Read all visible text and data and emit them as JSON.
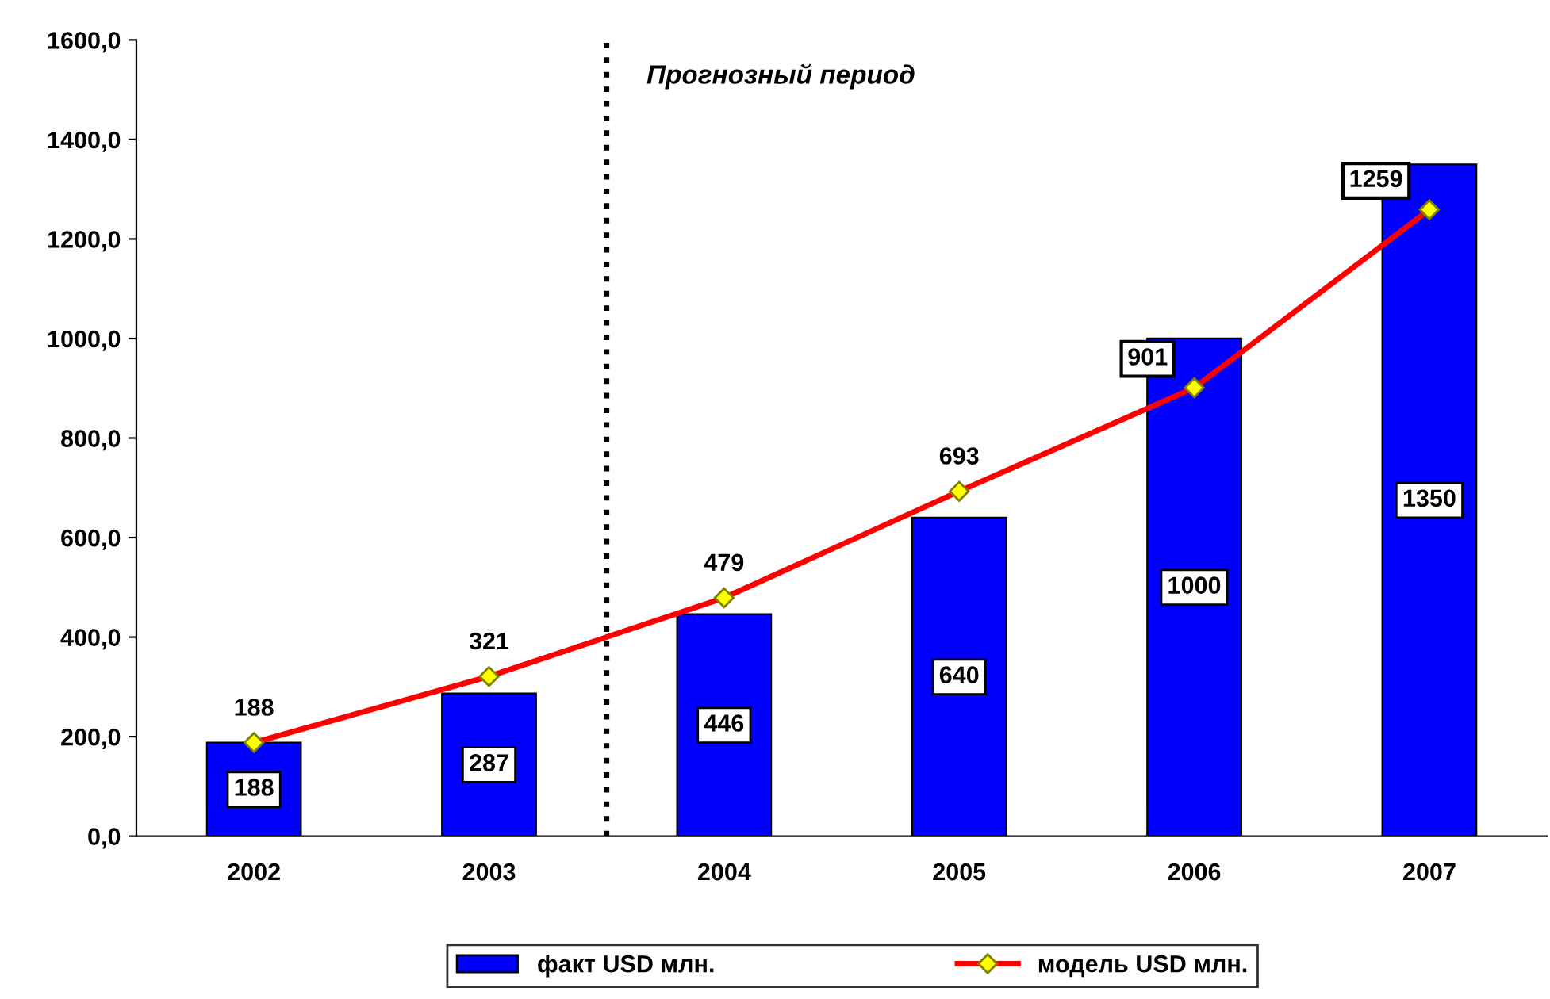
{
  "chart_data": {
    "type": "bar",
    "categories": [
      "2002",
      "2003",
      "2004",
      "2005",
      "2006",
      "2007"
    ],
    "series": [
      {
        "name": "факт USD млн.",
        "color": "#0000ff",
        "values": [
          188,
          287,
          446,
          640,
          1000,
          1350
        ]
      },
      {
        "name": "модель USD млн.",
        "type": "line",
        "color": "#ff0000",
        "marker": "diamond",
        "values": [
          188,
          321,
          479,
          693,
          901,
          1259
        ]
      }
    ],
    "ylim": [
      0,
      1600
    ],
    "yticks": [
      {
        "value": 0,
        "label": "0,0"
      },
      {
        "value": 200,
        "label": "200,0"
      },
      {
        "value": 400,
        "label": "400,0"
      },
      {
        "value": 600,
        "label": "600,0"
      },
      {
        "value": 800,
        "label": "800,0"
      },
      {
        "value": 1000,
        "label": "1000,0"
      },
      {
        "value": 1200,
        "label": "1200,0"
      },
      {
        "value": 1400,
        "label": "1400,0"
      },
      {
        "value": 1600,
        "label": "1600,0"
      }
    ],
    "annotations": [
      "Прогнозный период"
    ],
    "data_labels": true,
    "grid": false,
    "legend": "bottom"
  }
}
